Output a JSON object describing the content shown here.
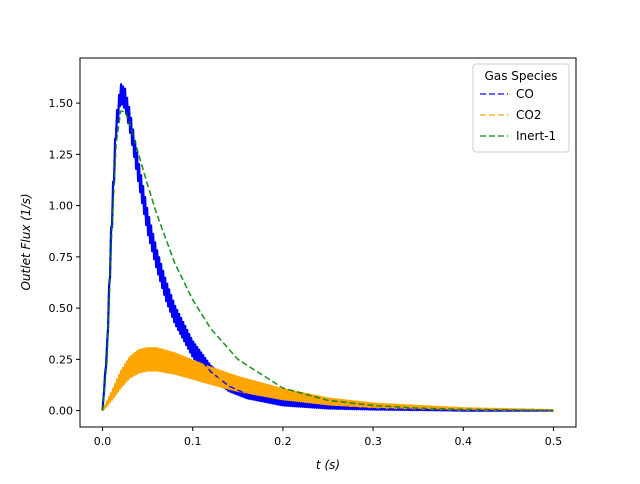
{
  "chart_data": {
    "type": "line",
    "xlabel": "t (s)",
    "ylabel": "Outlet Flux (1/s)",
    "xlim": [
      -0.025,
      0.525
    ],
    "ylim": [
      -0.08,
      1.72
    ],
    "x_ticks": [
      "0.0",
      "0.1",
      "0.2",
      "0.3",
      "0.4",
      "0.5"
    ],
    "y_ticks": [
      "0.00",
      "0.25",
      "0.50",
      "0.75",
      "1.00",
      "1.25",
      "1.50"
    ],
    "grid": false,
    "legend": {
      "title": "Gas Species",
      "placement": "top-right",
      "entries": [
        "CO",
        "CO2",
        "Inert-1"
      ]
    },
    "series": [
      {
        "name": "CO",
        "color": "#0000ff",
        "style": "dashed",
        "x": [
          0.0,
          0.005,
          0.01,
          0.015,
          0.02,
          0.025,
          0.03,
          0.04,
          0.05,
          0.06,
          0.07,
          0.08,
          0.1,
          0.12,
          0.14,
          0.16,
          0.2,
          0.25,
          0.3,
          0.4,
          0.5
        ],
        "y": [
          0.0,
          0.3,
          0.9,
          1.38,
          1.55,
          1.52,
          1.42,
          1.16,
          0.92,
          0.74,
          0.59,
          0.47,
          0.3,
          0.19,
          0.12,
          0.08,
          0.04,
          0.02,
          0.01,
          0.0,
          0.0
        ],
        "band": [
          0.0,
          0.05,
          0.12,
          0.1,
          0.09,
          0.1,
          0.1,
          0.11,
          0.11,
          0.1,
          0.1,
          0.09,
          0.08,
          0.06,
          0.05,
          0.04,
          0.03,
          0.02,
          0.01,
          0.0,
          0.0
        ]
      },
      {
        "name": "CO2",
        "color": "#ffa500",
        "style": "dashed",
        "x": [
          0.0,
          0.01,
          0.02,
          0.03,
          0.04,
          0.05,
          0.06,
          0.08,
          0.1,
          0.12,
          0.15,
          0.2,
          0.25,
          0.3,
          0.4,
          0.5
        ],
        "y": [
          0.0,
          0.07,
          0.15,
          0.21,
          0.24,
          0.25,
          0.25,
          0.23,
          0.2,
          0.17,
          0.13,
          0.08,
          0.045,
          0.025,
          0.008,
          0.002
        ],
        "band": [
          0.0,
          0.04,
          0.08,
          0.1,
          0.11,
          0.11,
          0.11,
          0.1,
          0.09,
          0.08,
          0.07,
          0.05,
          0.03,
          0.02,
          0.008,
          0.002
        ]
      },
      {
        "name": "Inert-1",
        "color": "#008000",
        "style": "dashed",
        "x": [
          0.0,
          0.005,
          0.01,
          0.015,
          0.02,
          0.025,
          0.03,
          0.04,
          0.05,
          0.06,
          0.08,
          0.1,
          0.12,
          0.15,
          0.2,
          0.25,
          0.3,
          0.35,
          0.4,
          0.5
        ],
        "y": [
          0.0,
          0.25,
          0.85,
          1.3,
          1.46,
          1.46,
          1.4,
          1.25,
          1.1,
          0.96,
          0.72,
          0.54,
          0.4,
          0.25,
          0.11,
          0.05,
          0.025,
          0.012,
          0.006,
          0.001
        ],
        "band": []
      }
    ]
  }
}
